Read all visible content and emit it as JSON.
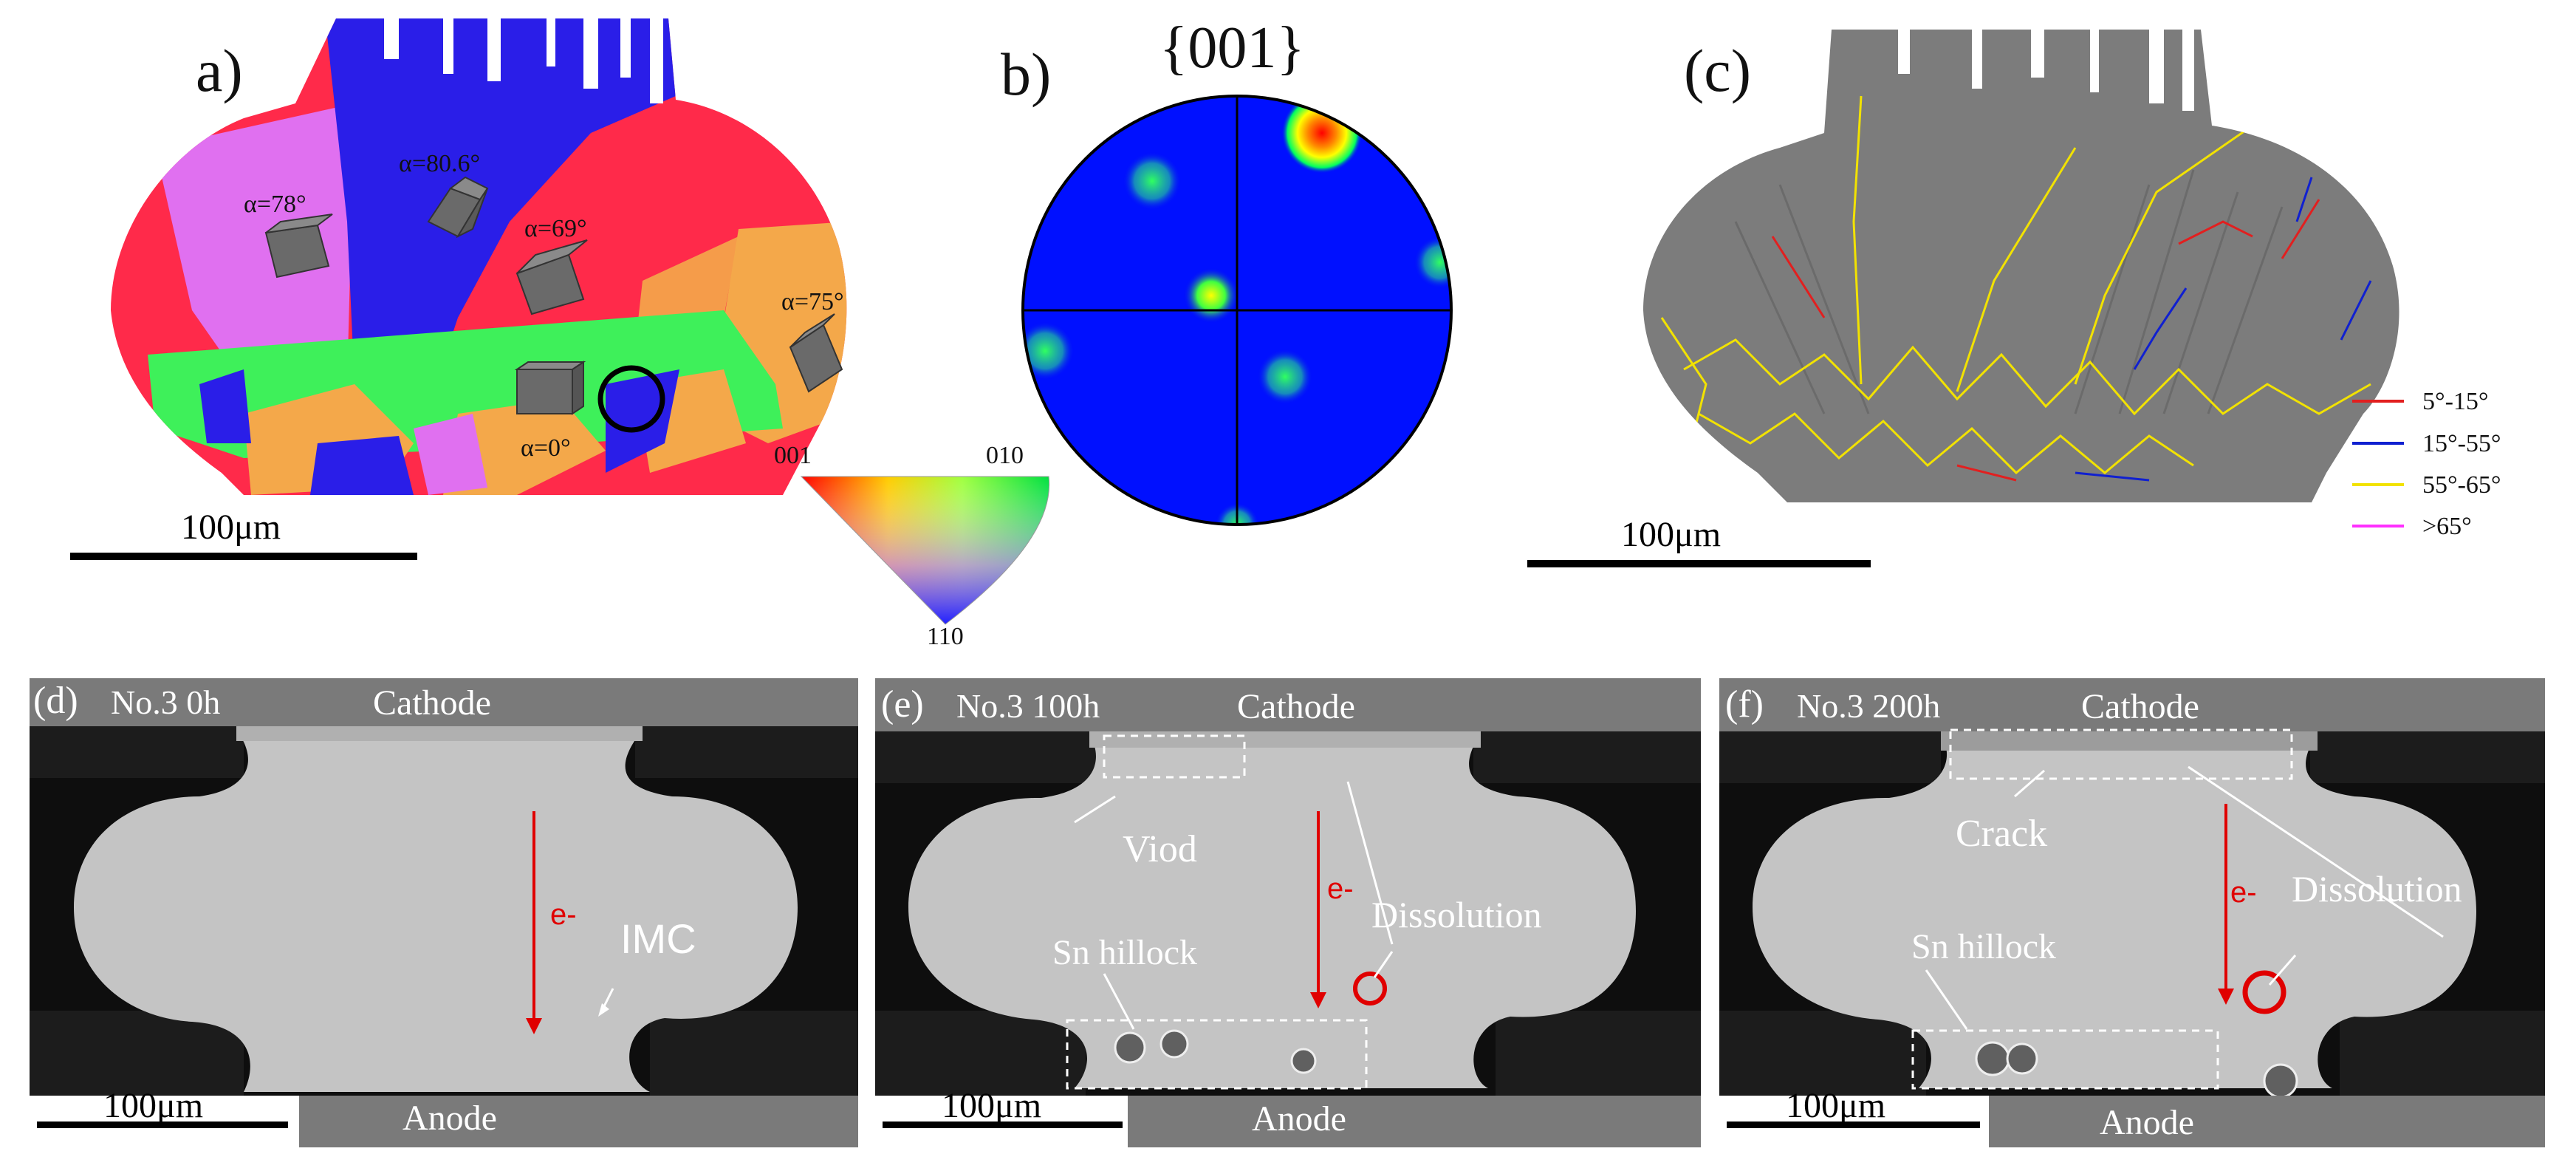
{
  "colors": {
    "red": "#ff2a4a",
    "magenta": "#e070f0",
    "blue": "#2a1ee8",
    "green": "#3ef05a",
    "orange": "#f4a84a",
    "sem_gray": "#c4c4c4",
    "sem_dark": "#0e0e0e",
    "electrode": "#7a7a7a",
    "boundary_red": "#e21f1f",
    "boundary_blue": "#1020d0",
    "boundary_yellow": "#f2e200",
    "boundary_magenta": "#ff30ff"
  },
  "panel_a": {
    "letter": "a)",
    "angles": [
      "α=78°",
      "α=80.6°",
      "α=69°",
      "α=75°",
      "α=0°"
    ],
    "scale": "100μm",
    "triangle": {
      "top_left": "001",
      "top_right": "010",
      "bottom": "110"
    }
  },
  "panel_b": {
    "letter": "b)",
    "title": "{001}"
  },
  "panel_c": {
    "letter": "(c)",
    "scale": "100μm",
    "legend": [
      {
        "label": "5°-15°",
        "color": "#e21f1f"
      },
      {
        "label": "15°-55°",
        "color": "#1020d0"
      },
      {
        "label": "55°-65°",
        "color": "#f2e200"
      },
      {
        "label": ">65°",
        "color": "#ff30ff"
      }
    ]
  },
  "panel_d": {
    "letter": "(d)",
    "sample": "No.3  0h",
    "cathode": "Cathode",
    "anode": "Anode",
    "electron": "e-",
    "imc": "IMC",
    "scale": "100μm"
  },
  "panel_e": {
    "letter": "(e)",
    "sample": "No.3 100h",
    "cathode": "Cathode",
    "anode": "Anode",
    "electron": "e-",
    "void": "Viod",
    "dissolution": "Dissolution",
    "hillock": "Sn hillock",
    "scale": "100μm"
  },
  "panel_f": {
    "letter": "(f)",
    "sample": "No.3 200h",
    "cathode": "Cathode",
    "anode": "Anode",
    "electron": "e-",
    "crack": "Crack",
    "dissolution": "Dissolution",
    "hillock": "Sn hillock",
    "scale": "100μm"
  }
}
